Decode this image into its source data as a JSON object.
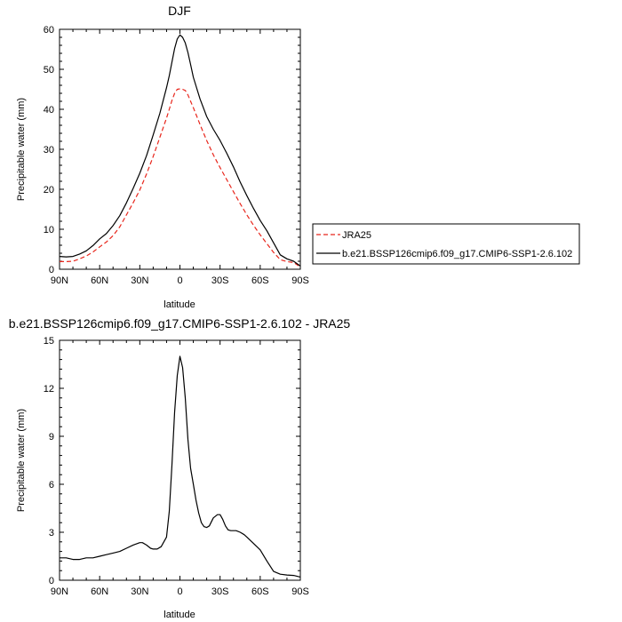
{
  "chart_data": [
    {
      "type": "line",
      "title": "DJF",
      "xlabel": "latitude",
      "ylabel": "Precipitable water (mm)",
      "xlim": [
        90,
        -90
      ],
      "ylim": [
        0,
        60
      ],
      "xticks": [
        {
          "value": 90,
          "label": "90N"
        },
        {
          "value": 60,
          "label": "60N"
        },
        {
          "value": 30,
          "label": "30N"
        },
        {
          "value": 0,
          "label": "0"
        },
        {
          "value": -30,
          "label": "30S"
        },
        {
          "value": -60,
          "label": "60S"
        },
        {
          "value": -90,
          "label": "90S"
        }
      ],
      "yticks": [
        0,
        10,
        20,
        30,
        40,
        50,
        60
      ],
      "grid": false,
      "legend": "right",
      "series": [
        {
          "name": "JRA25",
          "color": "#e8261c",
          "dash": "dashed",
          "x": [
            90,
            85,
            80,
            75,
            70,
            65,
            60,
            55,
            50,
            45,
            40,
            35,
            30,
            25,
            20,
            15,
            10,
            8,
            6,
            4,
            2,
            0,
            -2,
            -4,
            -6,
            -8,
            -10,
            -15,
            -20,
            -25,
            -30,
            -35,
            -40,
            -45,
            -50,
            -55,
            -60,
            -65,
            -70,
            -75,
            -80,
            -85,
            -90
          ],
          "y": [
            1.9,
            1.9,
            2.0,
            2.6,
            3.3,
            4.3,
            5.6,
            6.8,
            8.4,
            10.6,
            13.6,
            16.6,
            19.8,
            23.8,
            28.2,
            33.0,
            37.8,
            40.0,
            42.2,
            44.0,
            45.0,
            45.1,
            45.0,
            44.7,
            43.6,
            42.0,
            40.4,
            36.2,
            32.2,
            28.6,
            25.4,
            22.4,
            19.4,
            16.4,
            13.6,
            11.0,
            8.6,
            6.4,
            4.2,
            2.4,
            1.9,
            1.7,
            0.6
          ]
        },
        {
          "name": "b.e21.BSSP126cmip6.f09_g17.CMIP6-SSP1-2.6.102",
          "color": "#000000",
          "dash": "solid",
          "x": [
            90,
            85,
            80,
            75,
            70,
            65,
            60,
            55,
            50,
            45,
            40,
            35,
            30,
            25,
            20,
            15,
            10,
            8,
            6,
            4,
            2,
            0,
            -2,
            -4,
            -6,
            -8,
            -10,
            -15,
            -20,
            -25,
            -30,
            -35,
            -40,
            -45,
            -50,
            -55,
            -60,
            -65,
            -70,
            -75,
            -80,
            -85,
            -90
          ],
          "y": [
            3.2,
            3.1,
            3.2,
            3.8,
            4.6,
            5.9,
            7.6,
            8.9,
            10.9,
            13.4,
            16.6,
            20.2,
            24.0,
            28.4,
            33.6,
            39.0,
            45.4,
            48.4,
            51.8,
            55.2,
            57.6,
            58.6,
            58.0,
            56.6,
            54.2,
            51.2,
            48.0,
            42.6,
            38.2,
            35.0,
            32.2,
            29.0,
            25.6,
            21.8,
            18.4,
            15.2,
            12.2,
            9.6,
            6.6,
            3.6,
            2.6,
            2.0,
            0.8
          ]
        }
      ]
    },
    {
      "type": "line",
      "title": "b.e21.BSSP126cmip6.f09_g17.CMIP6-SSP1-2.6.102 - JRA25",
      "xlabel": "latitude",
      "ylabel": "Precipitable water (mm)",
      "xlim": [
        90,
        -90
      ],
      "ylim": [
        0,
        15
      ],
      "xticks": [
        {
          "value": 90,
          "label": "90N"
        },
        {
          "value": 60,
          "label": "60N"
        },
        {
          "value": 30,
          "label": "30N"
        },
        {
          "value": 0,
          "label": "0"
        },
        {
          "value": -30,
          "label": "30S"
        },
        {
          "value": -60,
          "label": "60S"
        },
        {
          "value": -90,
          "label": "90S"
        }
      ],
      "yticks": [
        0,
        3,
        6,
        9,
        12,
        15
      ],
      "grid": false,
      "series": [
        {
          "color": "#000000",
          "dash": "solid",
          "x": [
            90,
            85,
            80,
            75,
            70,
            65,
            60,
            55,
            50,
            45,
            40,
            35,
            30,
            28,
            25,
            22,
            20,
            17,
            14,
            12,
            10,
            8,
            6,
            4,
            2,
            0,
            -2,
            -4,
            -6,
            -8,
            -10,
            -12,
            -14,
            -16,
            -18,
            -20,
            -22,
            -25,
            -28,
            -30,
            -32,
            -34,
            -36,
            -38,
            -40,
            -42,
            -45,
            -48,
            -50,
            -55,
            -60,
            -65,
            -70,
            -75,
            -80,
            -85,
            -90
          ],
          "y": [
            1.4,
            1.4,
            1.3,
            1.3,
            1.4,
            1.4,
            1.5,
            1.6,
            1.7,
            1.8,
            2.0,
            2.2,
            2.35,
            2.35,
            2.2,
            2.0,
            1.95,
            1.95,
            2.1,
            2.4,
            2.7,
            4.3,
            7.2,
            10.5,
            12.8,
            14.0,
            13.3,
            11.4,
            8.8,
            7.0,
            6.0,
            5.0,
            4.2,
            3.6,
            3.35,
            3.3,
            3.4,
            3.9,
            4.1,
            4.1,
            3.8,
            3.4,
            3.15,
            3.1,
            3.1,
            3.1,
            3.0,
            2.85,
            2.7,
            2.3,
            1.9,
            1.2,
            0.55,
            0.38,
            0.33,
            0.3,
            0.2
          ]
        }
      ]
    }
  ]
}
